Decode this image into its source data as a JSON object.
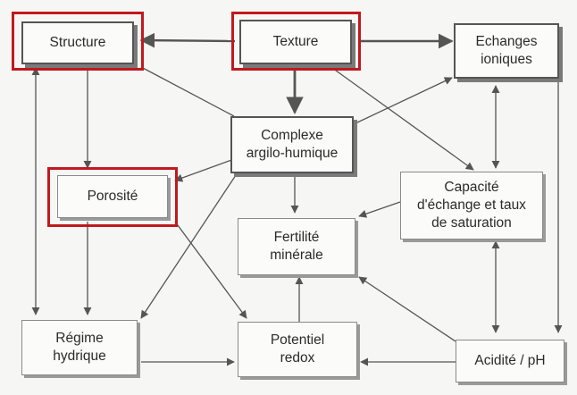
{
  "nodes": {
    "structure": "Structure",
    "texture": "Texture",
    "echanges": "Echanges\nioniques",
    "complexe": "Complexe\nargilo-humique",
    "porosite": "Porosité",
    "capacite": "Capacité\nd'échange et taux\nde saturation",
    "fertilite": "Fertilité\nminérale",
    "regime": "Régime\nhydrique",
    "potentiel": "Potentiel\nredox",
    "acidite": "Acidité / pH"
  },
  "highlighted_nodes": [
    "structure",
    "texture",
    "porosite"
  ],
  "colors": {
    "highlight": "#c0191f",
    "arrow": "#555555",
    "box_border": "#8a8a8a"
  }
}
